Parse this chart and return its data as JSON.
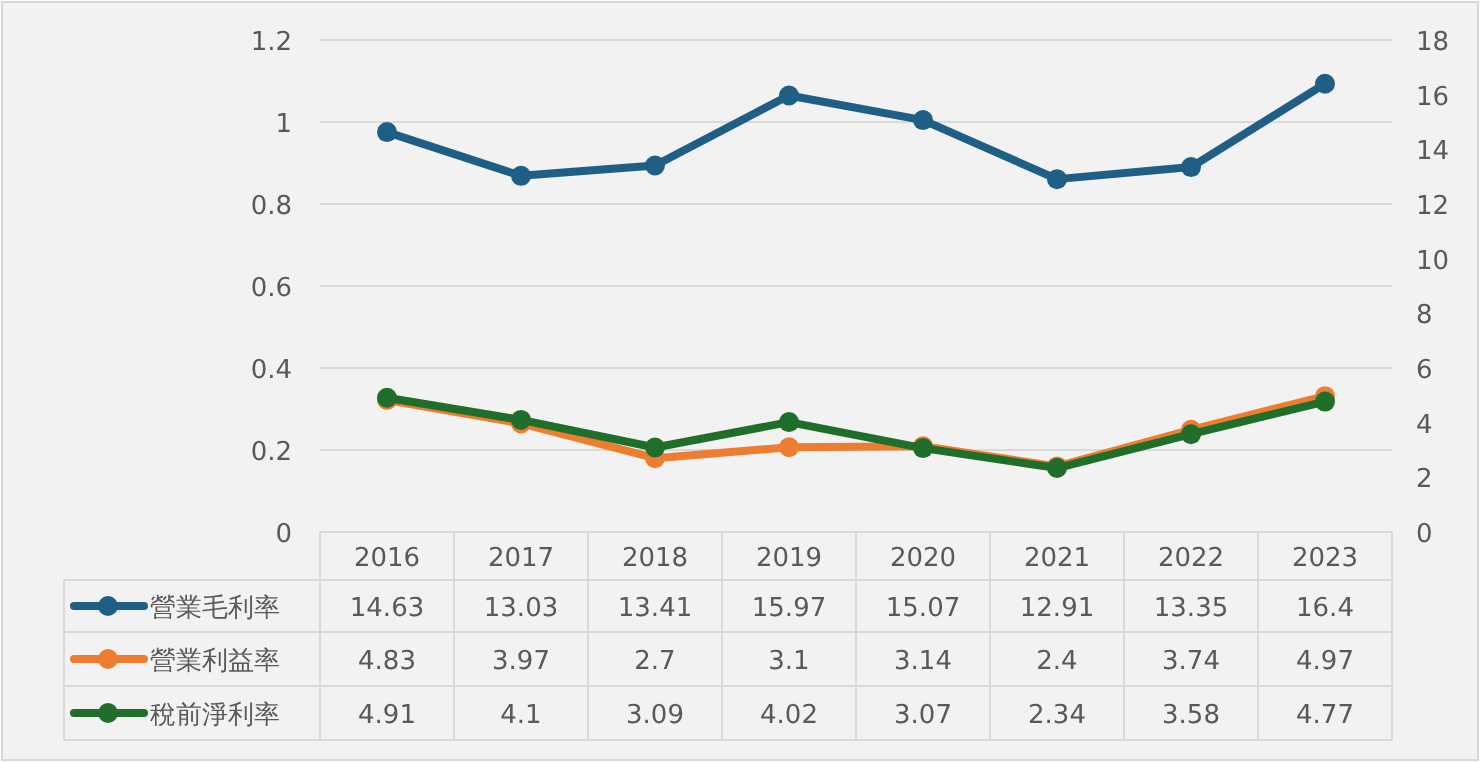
{
  "chart_data": {
    "type": "line",
    "categories": [
      "2016",
      "2017",
      "2018",
      "2019",
      "2020",
      "2021",
      "2022",
      "2023"
    ],
    "series": [
      {
        "name": "營業毛利率",
        "color": "#1f5f85",
        "axis": "y2",
        "values": [
          14.63,
          13.03,
          13.41,
          15.97,
          15.07,
          12.91,
          13.35,
          16.4
        ]
      },
      {
        "name": "營業利益率",
        "color": "#ed7d31",
        "axis": "y2",
        "values": [
          4.83,
          3.97,
          2.7,
          3.1,
          3.14,
          2.4,
          3.74,
          4.97
        ]
      },
      {
        "name": "稅前淨利率",
        "color": "#1f6e2a",
        "axis": "y2",
        "values": [
          4.91,
          4.1,
          3.09,
          4.02,
          3.07,
          2.34,
          3.58,
          4.77
        ]
      }
    ],
    "ylim": [
      0,
      1.2
    ],
    "yticks": [
      0,
      0.2,
      0.4,
      0.6,
      0.8,
      1,
      1.2
    ],
    "y2lim": [
      0,
      18
    ],
    "y2ticks": [
      0,
      2,
      4,
      6,
      8,
      10,
      12,
      14,
      16,
      18
    ],
    "grid": "y",
    "legend": "bottom",
    "marker": "circle",
    "line_style": "solid",
    "data_labels": true
  }
}
